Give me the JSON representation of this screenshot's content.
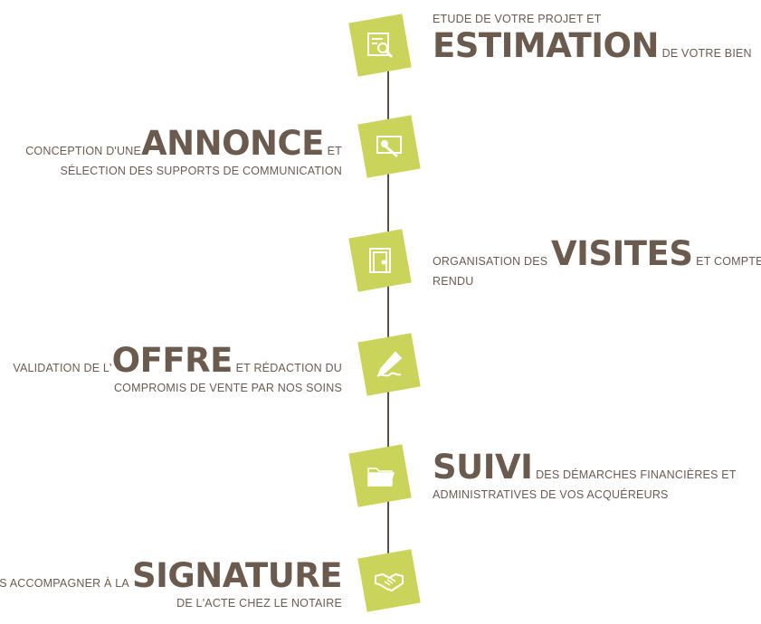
{
  "colors": {
    "accent": "#cbd45a",
    "text": "#6b5b4e",
    "line": "#5e4e43"
  },
  "steps": [
    {
      "icon": "search-document-icon",
      "pre": "ETUDE DE VOTRE PROJET ET",
      "big": "ESTIMATION",
      "post": "DE VOTRE BIEN",
      "line2": ""
    },
    {
      "icon": "key-icon",
      "pre": "CONCEPTION D'UNE",
      "big": "ANNONCE",
      "post": "ET",
      "line2": "SÉLECTION DES SUPPORTS DE COMMUNICATION"
    },
    {
      "icon": "door-icon",
      "pre": "ORGANISATION DES",
      "big": "VISITES",
      "post": "ET COMPTE-",
      "line2": "RENDU"
    },
    {
      "icon": "pen-icon",
      "pre": "VALIDATION DE L'",
      "big": "OFFRE",
      "post": "ET RÉDACTION DU",
      "line2": "COMPROMIS DE VENTE PAR NOS SOINS"
    },
    {
      "icon": "folder-icon",
      "pre": "",
      "big": "SUIVI",
      "post": "DES DÉMARCHES FINANCIÈRES ET",
      "line2": "ADMINISTRATIVES DE VOS ACQUÉREURS"
    },
    {
      "icon": "handshake-icon",
      "pre": "VOUS ACCOMPAGNER À LA",
      "big": "SIGNATURE",
      "post": "",
      "line2": "DE L'ACTE CHEZ LE NOTAIRE"
    }
  ]
}
